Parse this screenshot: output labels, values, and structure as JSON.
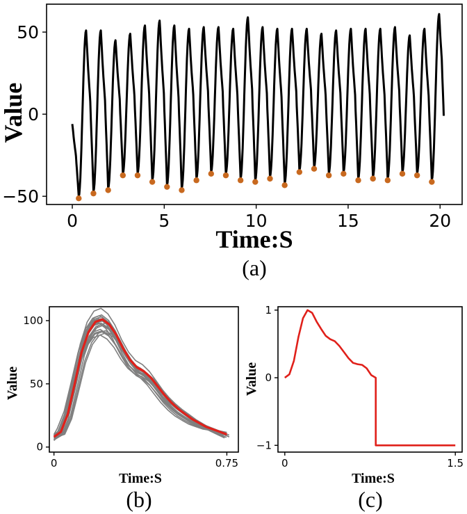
{
  "chart_data": [
    {
      "id": "a",
      "type": "line",
      "caption": "(a)",
      "xlabel": "Time:S",
      "ylabel": "Value",
      "xlim": [
        -1.4,
        21.2
      ],
      "ylim": [
        -55,
        67
      ],
      "xticks": [
        0,
        5,
        10,
        15,
        20
      ],
      "xtick_labels": [
        "0",
        "5",
        "10",
        "15",
        "20"
      ],
      "yticks": [
        50,
        0,
        -50
      ],
      "ytick_labels": [
        "50",
        "0",
        "−50"
      ],
      "line_color": "#000000",
      "marker_color": "#c8691f",
      "peak_times": [
        0.75,
        1.55,
        2.35,
        3.15,
        3.95,
        4.75,
        5.55,
        6.35,
        7.15,
        7.95,
        8.75,
        9.55,
        10.35,
        11.15,
        11.95,
        12.75,
        13.55,
        14.35,
        15.15,
        15.95,
        16.75,
        17.55,
        18.35,
        19.15,
        19.95
      ],
      "peak_values": [
        51,
        51,
        45,
        49,
        54,
        57,
        54,
        52,
        53,
        53,
        52,
        59,
        53,
        52,
        52,
        52,
        49,
        51,
        52,
        52,
        52,
        53,
        48,
        52,
        61
      ],
      "trough_times": [
        0.35,
        1.15,
        1.95,
        2.75,
        3.55,
        4.35,
        5.15,
        5.95,
        6.75,
        7.55,
        8.35,
        9.15,
        9.95,
        10.75,
        11.55,
        12.35,
        13.15,
        13.95,
        14.75,
        15.55,
        16.35,
        17.15,
        17.95,
        18.75,
        19.55
      ],
      "trough_values": [
        -50,
        -47,
        -45,
        -36,
        -36,
        -40,
        -43,
        -45,
        -39,
        -35,
        -36,
        -39,
        -40,
        -38,
        -42,
        -34,
        -32,
        -36,
        -35,
        -39,
        -38,
        -39,
        -35,
        -36,
        -40
      ],
      "start_value": -6,
      "end_value": -1
    },
    {
      "id": "b",
      "type": "line",
      "caption": "(b)",
      "xlabel": "Time:S",
      "ylabel": "Value",
      "xlim": [
        -0.02,
        0.8
      ],
      "ylim": [
        -4,
        111
      ],
      "xticks": [
        0,
        0.75
      ],
      "xtick_labels": [
        "0",
        "0.75"
      ],
      "yticks": [
        100,
        50,
        0
      ],
      "ytick_labels": [
        "100",
        "50",
        "0"
      ],
      "background_color": "#7f7f7f",
      "mean_color": "#e0201a",
      "mean_curve": {
        "x": [
          0,
          0.03,
          0.06,
          0.09,
          0.12,
          0.15,
          0.18,
          0.21,
          0.24,
          0.27,
          0.3,
          0.33,
          0.36,
          0.39,
          0.42,
          0.45,
          0.48,
          0.51,
          0.54,
          0.57,
          0.6,
          0.63,
          0.66,
          0.69,
          0.72,
          0.75
        ],
        "y": [
          8,
          12,
          26,
          50,
          75,
          91,
          99,
          101,
          97,
          89,
          78,
          69,
          63,
          60,
          55,
          48,
          41,
          35,
          30,
          26,
          22,
          19,
          16,
          14,
          12,
          10
        ]
      },
      "n_background_curves": 18
    },
    {
      "id": "c",
      "type": "line",
      "caption": "(c)",
      "xlabel": "Time:S",
      "ylabel": "Value",
      "xlim": [
        -0.06,
        1.56
      ],
      "ylim": [
        -1.1,
        1.05
      ],
      "xticks": [
        0,
        1.5
      ],
      "xtick_labels": [
        "0",
        "1.5"
      ],
      "yticks": [
        1,
        0,
        -1
      ],
      "ytick_labels": [
        "1",
        "0",
        "−1"
      ],
      "line_color": "#e0201a",
      "curve": {
        "x": [
          0,
          0.04,
          0.08,
          0.12,
          0.16,
          0.2,
          0.24,
          0.28,
          0.32,
          0.36,
          0.4,
          0.44,
          0.48,
          0.52,
          0.56,
          0.6,
          0.64,
          0.68,
          0.72,
          0.76,
          0.8,
          0.8,
          1.5
        ],
        "y": [
          0,
          0.05,
          0.25,
          0.6,
          0.88,
          1.0,
          0.96,
          0.83,
          0.72,
          0.62,
          0.57,
          0.54,
          0.47,
          0.38,
          0.29,
          0.22,
          0.2,
          0.19,
          0.14,
          0.04,
          0.0,
          -1.0,
          -1.0
        ]
      }
    }
  ]
}
